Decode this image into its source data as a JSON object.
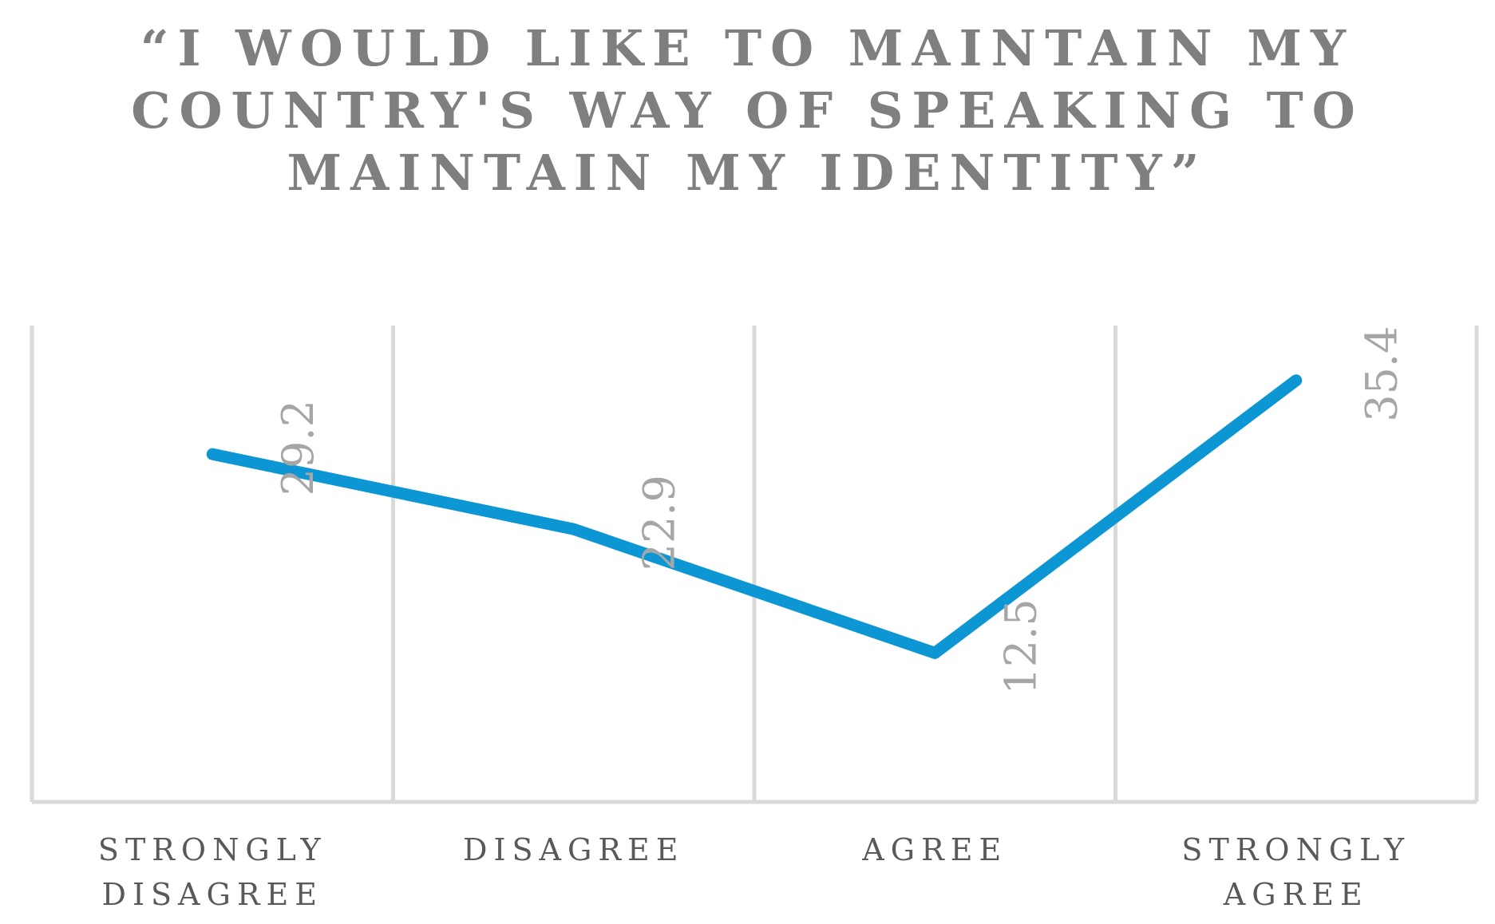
{
  "chart_data": {
    "type": "line",
    "title_lines": [
      "“I WOULD LIKE TO MAINTAIN MY",
      "COUNTRY'S WAY OF SPEAKING TO",
      "MAINTAIN MY IDENTITY”"
    ],
    "categories": [
      [
        "STRONGLY",
        "DISAGREE"
      ],
      [
        "DISAGREE"
      ],
      [
        "AGREE"
      ],
      [
        "STRONGLY",
        "AGREE"
      ]
    ],
    "series": [
      {
        "values": [
          29.2,
          22.9,
          12.5,
          35.4
        ],
        "labels": [
          "29.2",
          "22.9",
          "12.5",
          "35.4"
        ],
        "color": "#0c96d4"
      }
    ],
    "ylim": [
      0,
      40
    ],
    "grid": "vertical",
    "data_label_orientation": "rotated"
  }
}
